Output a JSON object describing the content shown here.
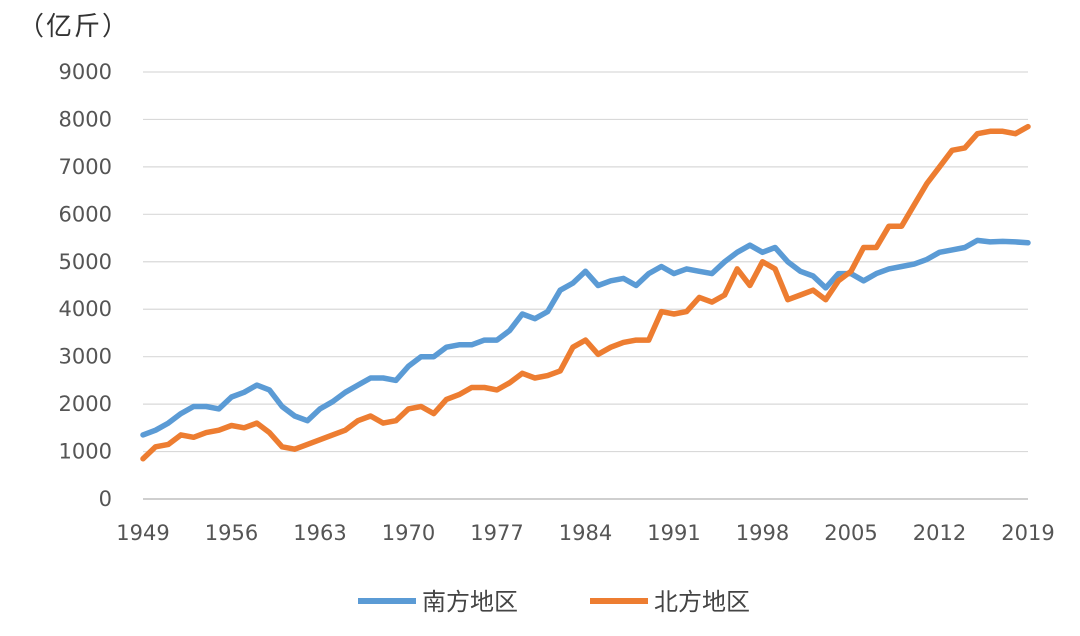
{
  "chart_data": {
    "type": "line",
    "unit": "（亿斤）",
    "ylim": [
      0,
      9000
    ],
    "yticks": [
      0,
      1000,
      2000,
      3000,
      4000,
      5000,
      6000,
      7000,
      8000,
      9000
    ],
    "xlim": [
      1949,
      2019
    ],
    "xticks": [
      1949,
      1956,
      1963,
      1970,
      1977,
      1984,
      1991,
      1998,
      2005,
      2012,
      2019
    ],
    "grid": true,
    "legend_position": "bottom",
    "series": [
      {
        "name": "南方地区",
        "color": "#5b9bd5",
        "values": [
          [
            1949,
            1350
          ],
          [
            1950,
            1450
          ],
          [
            1951,
            1600
          ],
          [
            1952,
            1800
          ],
          [
            1953,
            1950
          ],
          [
            1954,
            1950
          ],
          [
            1955,
            1900
          ],
          [
            1956,
            2150
          ],
          [
            1957,
            2250
          ],
          [
            1958,
            2400
          ],
          [
            1959,
            2300
          ],
          [
            1960,
            1950
          ],
          [
            1961,
            1750
          ],
          [
            1962,
            1650
          ],
          [
            1963,
            1900
          ],
          [
            1964,
            2050
          ],
          [
            1965,
            2250
          ],
          [
            1966,
            2400
          ],
          [
            1967,
            2550
          ],
          [
            1968,
            2550
          ],
          [
            1969,
            2500
          ],
          [
            1970,
            2800
          ],
          [
            1971,
            3000
          ],
          [
            1972,
            3000
          ],
          [
            1973,
            3200
          ],
          [
            1974,
            3250
          ],
          [
            1975,
            3250
          ],
          [
            1976,
            3350
          ],
          [
            1977,
            3350
          ],
          [
            1978,
            3550
          ],
          [
            1979,
            3900
          ],
          [
            1980,
            3800
          ],
          [
            1981,
            3950
          ],
          [
            1982,
            4400
          ],
          [
            1983,
            4550
          ],
          [
            1984,
            4800
          ],
          [
            1985,
            4500
          ],
          [
            1986,
            4600
          ],
          [
            1987,
            4650
          ],
          [
            1988,
            4500
          ],
          [
            1989,
            4750
          ],
          [
            1990,
            4900
          ],
          [
            1991,
            4750
          ],
          [
            1992,
            4850
          ],
          [
            1993,
            4800
          ],
          [
            1994,
            4750
          ],
          [
            1995,
            5000
          ],
          [
            1996,
            5200
          ],
          [
            1997,
            5350
          ],
          [
            1998,
            5200
          ],
          [
            1999,
            5300
          ],
          [
            2000,
            5000
          ],
          [
            2001,
            4800
          ],
          [
            2002,
            4700
          ],
          [
            2003,
            4450
          ],
          [
            2004,
            4750
          ],
          [
            2005,
            4750
          ],
          [
            2006,
            4600
          ],
          [
            2007,
            4750
          ],
          [
            2008,
            4850
          ],
          [
            2009,
            4900
          ],
          [
            2010,
            4950
          ],
          [
            2011,
            5050
          ],
          [
            2012,
            5200
          ],
          [
            2013,
            5250
          ],
          [
            2014,
            5300
          ],
          [
            2015,
            5450
          ],
          [
            2016,
            5420
          ],
          [
            2017,
            5430
          ],
          [
            2018,
            5420
          ],
          [
            2019,
            5400
          ]
        ]
      },
      {
        "name": "北方地区",
        "color": "#ed7d31",
        "values": [
          [
            1949,
            850
          ],
          [
            1950,
            1100
          ],
          [
            1951,
            1150
          ],
          [
            1952,
            1350
          ],
          [
            1953,
            1300
          ],
          [
            1954,
            1400
          ],
          [
            1955,
            1450
          ],
          [
            1956,
            1550
          ],
          [
            1957,
            1500
          ],
          [
            1958,
            1600
          ],
          [
            1959,
            1400
          ],
          [
            1960,
            1100
          ],
          [
            1961,
            1050
          ],
          [
            1962,
            1150
          ],
          [
            1963,
            1250
          ],
          [
            1964,
            1350
          ],
          [
            1965,
            1450
          ],
          [
            1966,
            1650
          ],
          [
            1967,
            1750
          ],
          [
            1968,
            1600
          ],
          [
            1969,
            1650
          ],
          [
            1970,
            1900
          ],
          [
            1971,
            1950
          ],
          [
            1972,
            1800
          ],
          [
            1973,
            2100
          ],
          [
            1974,
            2200
          ],
          [
            1975,
            2350
          ],
          [
            1976,
            2350
          ],
          [
            1977,
            2300
          ],
          [
            1978,
            2450
          ],
          [
            1979,
            2650
          ],
          [
            1980,
            2550
          ],
          [
            1981,
            2600
          ],
          [
            1982,
            2700
          ],
          [
            1983,
            3200
          ],
          [
            1984,
            3350
          ],
          [
            1985,
            3050
          ],
          [
            1986,
            3200
          ],
          [
            1987,
            3300
          ],
          [
            1988,
            3350
          ],
          [
            1989,
            3350
          ],
          [
            1990,
            3950
          ],
          [
            1991,
            3900
          ],
          [
            1992,
            3950
          ],
          [
            1993,
            4250
          ],
          [
            1994,
            4150
          ],
          [
            1995,
            4300
          ],
          [
            1996,
            4850
          ],
          [
            1997,
            4500
          ],
          [
            1998,
            5000
          ],
          [
            1999,
            4850
          ],
          [
            2000,
            4200
          ],
          [
            2001,
            4300
          ],
          [
            2002,
            4400
          ],
          [
            2003,
            4200
          ],
          [
            2004,
            4600
          ],
          [
            2005,
            4800
          ],
          [
            2006,
            5300
          ],
          [
            2007,
            5300
          ],
          [
            2008,
            5750
          ],
          [
            2009,
            5750
          ],
          [
            2010,
            6200
          ],
          [
            2011,
            6650
          ],
          [
            2012,
            7000
          ],
          [
            2013,
            7350
          ],
          [
            2014,
            7400
          ],
          [
            2015,
            7700
          ],
          [
            2016,
            7750
          ],
          [
            2017,
            7750
          ],
          [
            2018,
            7700
          ],
          [
            2019,
            7850
          ]
        ]
      }
    ]
  }
}
